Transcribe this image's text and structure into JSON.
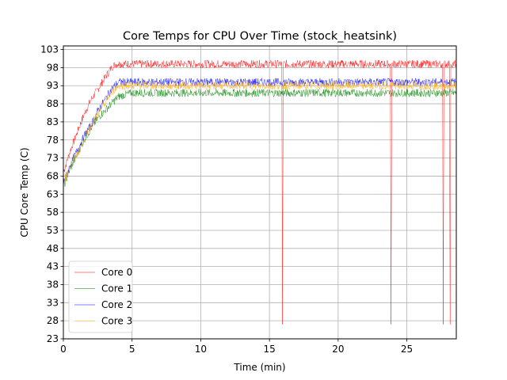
{
  "chart_data": {
    "type": "line",
    "title": "Core Temps for CPU Over Time (stock_heatsink)",
    "xlabel": "Time (min)",
    "ylabel": "CPU Core Temp (C)",
    "xlim": [
      0,
      28.6
    ],
    "ylim": [
      23,
      104
    ],
    "x_ticks": [
      0,
      5,
      10,
      15,
      20,
      25
    ],
    "y_ticks": [
      23,
      28,
      33,
      38,
      43,
      48,
      53,
      58,
      63,
      68,
      73,
      78,
      83,
      88,
      93,
      98,
      103
    ],
    "grid": true,
    "legend_position": "lower-left",
    "series": [
      {
        "name": "Core 0",
        "color": "#ff0000",
        "x": [
          0,
          0.5,
          1,
          1.5,
          2,
          2.5,
          3,
          3.5,
          3.8,
          4,
          5,
          8,
          12,
          15.9,
          15.95,
          16.0,
          20,
          23.8,
          23.85,
          23.9,
          27.6,
          27.65,
          27.7,
          28.1,
          28.15,
          28.2,
          28.6
        ],
        "y": [
          69,
          75,
          80,
          85,
          89,
          92,
          95,
          98,
          99,
          99,
          99,
          99,
          99,
          99,
          27,
          99,
          99,
          99,
          27,
          99,
          99,
          27,
          99,
          99,
          27,
          99,
          99
        ]
      },
      {
        "name": "Core 1",
        "color": "#008000",
        "x": [
          0,
          0.5,
          1,
          1.5,
          2,
          2.5,
          3,
          3.5,
          4,
          5,
          8,
          12,
          16,
          20,
          24,
          28.6
        ],
        "y": [
          65,
          70,
          74,
          78,
          81,
          84,
          86,
          88,
          90,
          91,
          91,
          91,
          91,
          91,
          91,
          91
        ]
      },
      {
        "name": "Core 2",
        "color": "#0000ff",
        "x": [
          0,
          0.5,
          1,
          1.5,
          2,
          2.5,
          3,
          3.5,
          4,
          5,
          8,
          12,
          16,
          20,
          24,
          28.6
        ],
        "y": [
          66,
          71,
          75,
          79,
          82,
          86,
          89,
          92,
          94,
          94,
          94,
          94,
          94,
          94,
          94,
          94
        ]
      },
      {
        "name": "Core 3",
        "color": "#ffa500",
        "x": [
          0,
          0.5,
          1,
          1.5,
          2,
          2.5,
          3,
          3.5,
          4,
          5,
          8,
          12,
          16,
          20,
          24,
          28.6
        ],
        "y": [
          66,
          71,
          74,
          78,
          82,
          85,
          88,
          91,
          93,
          93,
          93,
          93,
          93,
          93,
          93,
          93
        ]
      }
    ]
  }
}
